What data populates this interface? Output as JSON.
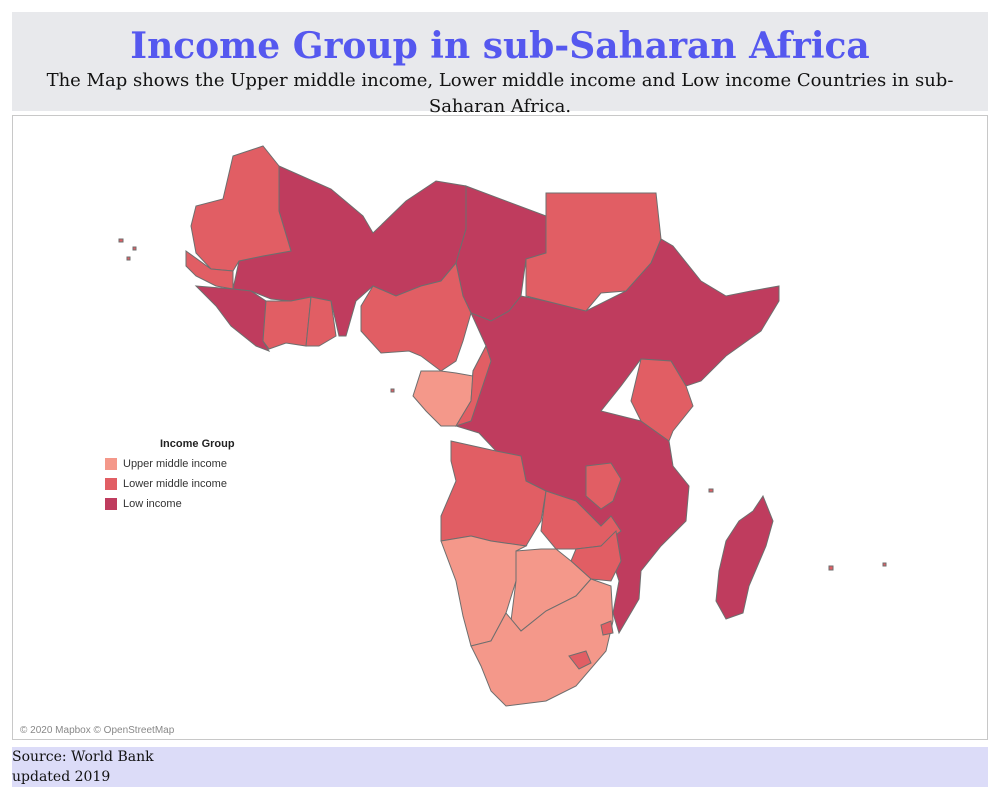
{
  "header": {
    "title": "Income Group in sub-Saharan Africa",
    "subtitle": "The Map shows the Upper middle income, Lower middle income and Low income Countries in sub-Saharan Africa."
  },
  "legend": {
    "title": "Income Group",
    "items": [
      {
        "label": "Upper middle income",
        "color": "#f4988a"
      },
      {
        "label": "Lower middle income",
        "color": "#e15e64"
      },
      {
        "label": "Low income",
        "color": "#bf3c5e"
      }
    ]
  },
  "map": {
    "attribution": "© 2020 Mapbox © OpenStreetMap",
    "border_color": "#6e6e6e"
  },
  "footer": {
    "source": "Source: World Bank",
    "updated": "updated 2019"
  }
}
